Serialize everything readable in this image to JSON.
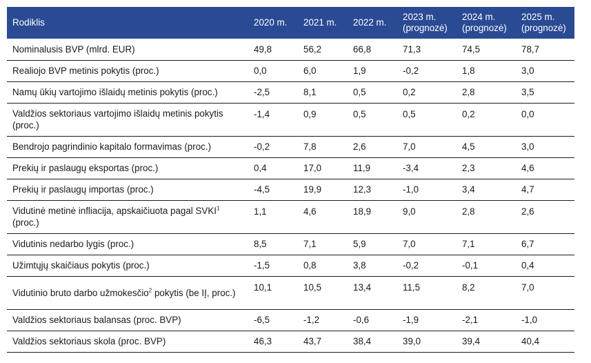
{
  "header": {
    "indicator": "Rodiklis",
    "years": [
      "2020 m.",
      "2021 m.",
      "2022 m.",
      "2023 m.\n(prognozė)",
      "2024 m.\n(prognozė)",
      "2025 m.\n(prognozė)"
    ]
  },
  "rows": [
    {
      "label": "Nominalusis BVP (mlrd. EUR)",
      "values": [
        "49,8",
        "56,2",
        "66,8",
        "71,3",
        "74,5",
        "78,7"
      ]
    },
    {
      "label": "Realiojo BVP metinis pokytis (proc.)",
      "values": [
        "0,0",
        "6,0",
        "1,9",
        "-0,2",
        "1,8",
        "3,0"
      ]
    },
    {
      "label": "Namų ūkių vartojimo išlaidų metinis pokytis (proc.)",
      "values": [
        "-2,5",
        "8,1",
        "0,5",
        "0,2",
        "2,8",
        "3,5"
      ]
    },
    {
      "label": "Valdžios sektoriaus vartojimo išlaidų metinis pokytis (proc.)",
      "values": [
        "-1,4",
        "0,9",
        "0,5",
        "0,5",
        "0,2",
        "0,0"
      ]
    },
    {
      "label": "Bendrojo pagrindinio kapitalo formavimas (proc.)",
      "values": [
        "-0,2",
        "7,8",
        "2,6",
        "7,0",
        "4,5",
        "3,0"
      ]
    },
    {
      "label": "Prekių ir paslaugų eksportas (proc.)",
      "values": [
        "0,4",
        "17,0",
        "11,9",
        "-3,4",
        "2,3",
        "4,6"
      ]
    },
    {
      "label": "Prekių ir paslaugų importas (proc.)",
      "values": [
        "-4,5",
        "19,9",
        "12,3",
        "-1,0",
        "3,4",
        "4,7"
      ]
    },
    {
      "label": "Vidutinė metinė infliacija, apskaičiuota pagal SVKI",
      "sup": "1",
      "label_tail": " (proc.)",
      "values": [
        "1,1",
        "4,6",
        "18,9",
        "9,0",
        "2,8",
        "2,6"
      ]
    },
    {
      "label": "Vidutinis nedarbo lygis (proc.)",
      "values": [
        "8,5",
        "7,1",
        "5,9",
        "7,0",
        "7,1",
        "6,7"
      ]
    },
    {
      "label": "Užimtųjų skaičiaus pokytis (proc.)",
      "values": [
        "-1,5",
        "0,8",
        "3,8",
        "-0,2",
        "-0,1",
        "0,4"
      ]
    },
    {
      "label": "Vidutinio bruto darbo užmokesčio",
      "sup": "2",
      "label_tail": " pokytis (be IĮ, proc.)",
      "values": [
        "10,1",
        "10,5",
        "13,4",
        "11,5",
        "8,2",
        "7,0"
      ]
    },
    {
      "label": "Valdžios sektoriaus balansas (proc. BVP)",
      "values": [
        "-6,5",
        "-1,2",
        "-0,6",
        "-1,9",
        "-2,1",
        "-1,0"
      ]
    },
    {
      "label": "Valdžios sektoriaus skola (proc. BVP)",
      "values": [
        "46,3",
        "43,7",
        "38,4",
        "39,0",
        "39,4",
        "40,4"
      ]
    }
  ],
  "colors": {
    "header_bg": "#2a4a94",
    "header_text": "#ffffff",
    "rule": "#1a1a1a"
  }
}
